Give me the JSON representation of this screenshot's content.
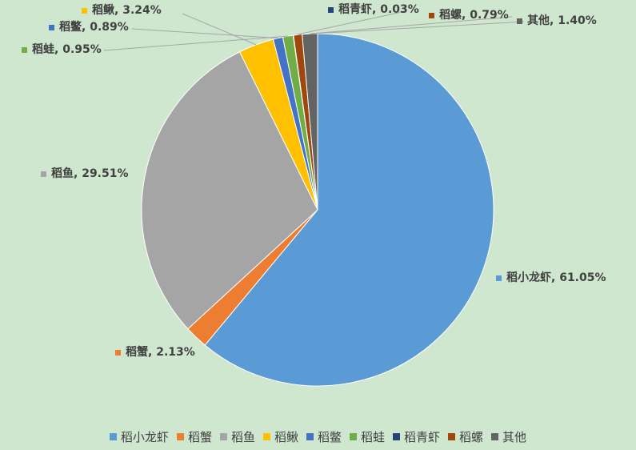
{
  "chart_data": {
    "type": "pie",
    "categories": [
      "稻小龙虾",
      "稻蟹",
      "稻鱼",
      "稻鳅",
      "稻鳖",
      "稻蛙",
      "稻青虾",
      "稻螺",
      "其他"
    ],
    "values": [
      61.05,
      2.13,
      29.51,
      3.24,
      0.89,
      0.95,
      0.03,
      0.79,
      1.4
    ],
    "value_labels": [
      "61.05%",
      "2.13%",
      "29.51%",
      "3.24%",
      "0.89%",
      "0.95%",
      "0.03%",
      "0.79%",
      "1.40%"
    ],
    "colors": [
      "#5b9bd5",
      "#ed7d31",
      "#a5a5a5",
      "#ffc000",
      "#4472c4",
      "#70ad47",
      "#264478",
      "#9e480e",
      "#636363"
    ],
    "legend": "bottom"
  }
}
